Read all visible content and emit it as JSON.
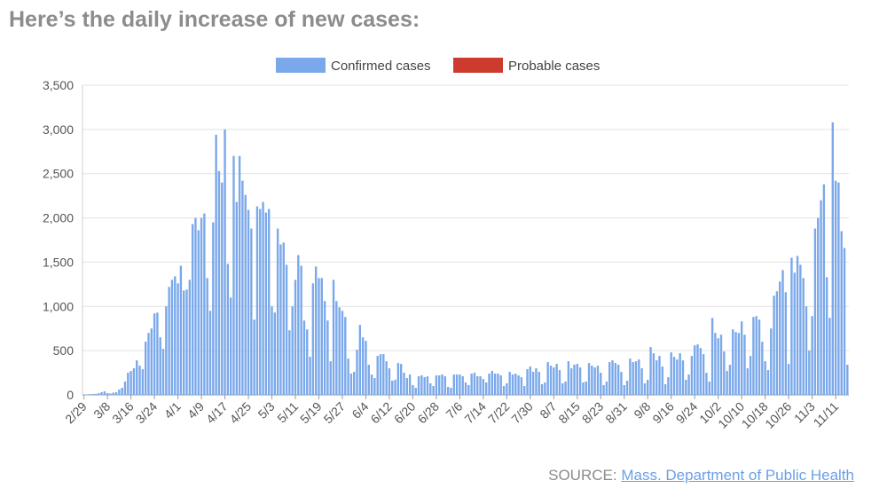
{
  "headline": "Here’s the daily increase of new cases:",
  "source": {
    "prefix": "SOURCE:",
    "link_text": "Mass. Department of Public Health"
  },
  "colors": {
    "confirmed": "#7aa8ea",
    "probable": "#cc3b2e",
    "grid": "#e3e3e3",
    "axis_text": "#555555",
    "headline": "#8c8c8c"
  },
  "chart_data": {
    "type": "bar",
    "stacked": true,
    "title": "",
    "xlabel": "",
    "ylabel": "",
    "ylim": [
      0,
      3500
    ],
    "yticks": [
      0,
      500,
      1000,
      1500,
      2000,
      2500,
      3000,
      3500
    ],
    "ytick_labels": [
      "0",
      "500",
      "1,000",
      "1,500",
      "2,000",
      "2,500",
      "3,000",
      "3,500"
    ],
    "grid": true,
    "legend_position": "top-center",
    "start_date": "2/29",
    "tick_labels": [
      "2/29",
      "3/8",
      "3/16",
      "3/24",
      "4/1",
      "4/9",
      "4/17",
      "4/25",
      "5/3",
      "5/11",
      "5/19",
      "5/27",
      "6/4",
      "6/12",
      "6/20",
      "6/28",
      "7/6",
      "7/14",
      "7/22",
      "7/30",
      "8/7",
      "8/15",
      "8/23",
      "8/31",
      "9/8",
      "9/16",
      "9/24",
      "10/2",
      "10/10",
      "10/18",
      "10/26",
      "11/3",
      "11/11"
    ],
    "series": [
      {
        "name": "Confirmed cases",
        "color": "#7aa8ea",
        "values": [
          5,
          2,
          8,
          10,
          12,
          18,
          30,
          40,
          20,
          15,
          25,
          30,
          60,
          80,
          150,
          250,
          270,
          300,
          390,
          330,
          290,
          600,
          700,
          750,
          920,
          930,
          650,
          520,
          1000,
          1220,
          1300,
          1340,
          1260,
          1460,
          1180,
          1190,
          1300,
          1930,
          2000,
          1860,
          2000,
          2050,
          1320,
          950,
          1950,
          2940,
          2530,
          2400,
          3000,
          1480,
          1100,
          2700,
          2180,
          2700,
          2420,
          2260,
          2090,
          1880,
          850,
          2130,
          2100,
          2180,
          2060,
          2100,
          1000,
          930,
          1880,
          1700,
          1720,
          1470,
          730,
          1000,
          1300,
          1580,
          1460,
          840,
          740,
          430,
          1260,
          1450,
          1320,
          1320,
          1060,
          840,
          380,
          1300,
          1060,
          990,
          950,
          880,
          410,
          240,
          260,
          510,
          790,
          650,
          610,
          340,
          230,
          190,
          440,
          460,
          460,
          380,
          300,
          160,
          170,
          360,
          350,
          250,
          190,
          230,
          110,
          80,
          210,
          220,
          200,
          210,
          130,
          100,
          220,
          220,
          230,
          210,
          90,
          80,
          230,
          230,
          230,
          210,
          140,
          110,
          240,
          250,
          210,
          210,
          180,
          140,
          240,
          270,
          240,
          240,
          220,
          100,
          130,
          260,
          230,
          240,
          220,
          200,
          100,
          290,
          320,
          260,
          300,
          260,
          120,
          140,
          370,
          330,
          310,
          350,
          280,
          130,
          150,
          380,
          300,
          340,
          350,
          310,
          140,
          150,
          360,
          330,
          310,
          330,
          250,
          110,
          150,
          370,
          390,
          360,
          340,
          260,
          110,
          160,
          410,
          370,
          380,
          400,
          300,
          130,
          170,
          540,
          470,
          390,
          440,
          320,
          120,
          200,
          480,
          430,
          400,
          470,
          390,
          170,
          230,
          440,
          560,
          570,
          530,
          460,
          250,
          150,
          870,
          700,
          640,
          680,
          490,
          270,
          340,
          740,
          710,
          700,
          830,
          680,
          300,
          440,
          880,
          890,
          850,
          600,
          380,
          280,
          750,
          1120,
          1170,
          1280,
          1410,
          1160,
          350,
          1550,
          1380,
          1570,
          1470,
          1320,
          1000,
          500,
          890,
          1880,
          2000,
          2200,
          2380,
          1330,
          870,
          3080,
          2420,
          2400,
          1850,
          1660,
          340
        ]
      },
      {
        "name": "Probable cases",
        "color": "#cc3b2e",
        "values": [
          0,
          0,
          0,
          0,
          0,
          0,
          0,
          0,
          0,
          0,
          0,
          0,
          0,
          0,
          0,
          0,
          0,
          0,
          0,
          0,
          0,
          0,
          0,
          0,
          0,
          0,
          0,
          0,
          0,
          0,
          0,
          0,
          0,
          0,
          0,
          0,
          0,
          0,
          0,
          0,
          0,
          0,
          0,
          0,
          0,
          0,
          0,
          0,
          0,
          0,
          0,
          0,
          0,
          0,
          0,
          0,
          0,
          0,
          0,
          0,
          0,
          0,
          0,
          0,
          0,
          0,
          0,
          0,
          0,
          0,
          0,
          0,
          0,
          0,
          0,
          0,
          0,
          0,
          0,
          0,
          0,
          0,
          0,
          0,
          0,
          0,
          0,
          0,
          0,
          0,
          0,
          0,
          0,
          0,
          0,
          0,
          0,
          0,
          0,
          0,
          0,
          0,
          0,
          0,
          0,
          0,
          0,
          0,
          0,
          0,
          0,
          0,
          0,
          0,
          0,
          0,
          0,
          0,
          0,
          0,
          0,
          0,
          0,
          0,
          0,
          0,
          0,
          0,
          0,
          0,
          0,
          0,
          0,
          0,
          0,
          0,
          0,
          0,
          0,
          0,
          0,
          0,
          0,
          0,
          0,
          0,
          0,
          0,
          0,
          0,
          0,
          0,
          0,
          0,
          0,
          0,
          0,
          0,
          0,
          0,
          0,
          0,
          0,
          0,
          0,
          0,
          0,
          0,
          0,
          0,
          0,
          0,
          0,
          0,
          0,
          0,
          0,
          0,
          0,
          0,
          0,
          0,
          0,
          0,
          0,
          0,
          0,
          0,
          0,
          0,
          0,
          0,
          0,
          0,
          0,
          0,
          0,
          0,
          0,
          0,
          0,
          0,
          0,
          0,
          0,
          0,
          0,
          0,
          0,
          0,
          0,
          0,
          0,
          0,
          0,
          0,
          0,
          0,
          0,
          0,
          0,
          0,
          0,
          0,
          0,
          0,
          0,
          0,
          0,
          0,
          0,
          0,
          0,
          0,
          0,
          0,
          0,
          0,
          0,
          0,
          0,
          0,
          0,
          0,
          0,
          0,
          0,
          0,
          0,
          0,
          0,
          0,
          0,
          0,
          0,
          0,
          0,
          0,
          0,
          0,
          0,
          0,
          0,
          0,
          0,
          0,
          0,
          0,
          0,
          0,
          0,
          0,
          0,
          0,
          0,
          0,
          0,
          0,
          0,
          0,
          0,
          0,
          0,
          0,
          0,
          0,
          0,
          0,
          0,
          0,
          0,
          0,
          0,
          0,
          0,
          0,
          0,
          0,
          0,
          0,
          0,
          0,
          0,
          0,
          0,
          0,
          0,
          0,
          0,
          0,
          0,
          0,
          0,
          0
        ]
      }
    ]
  }
}
